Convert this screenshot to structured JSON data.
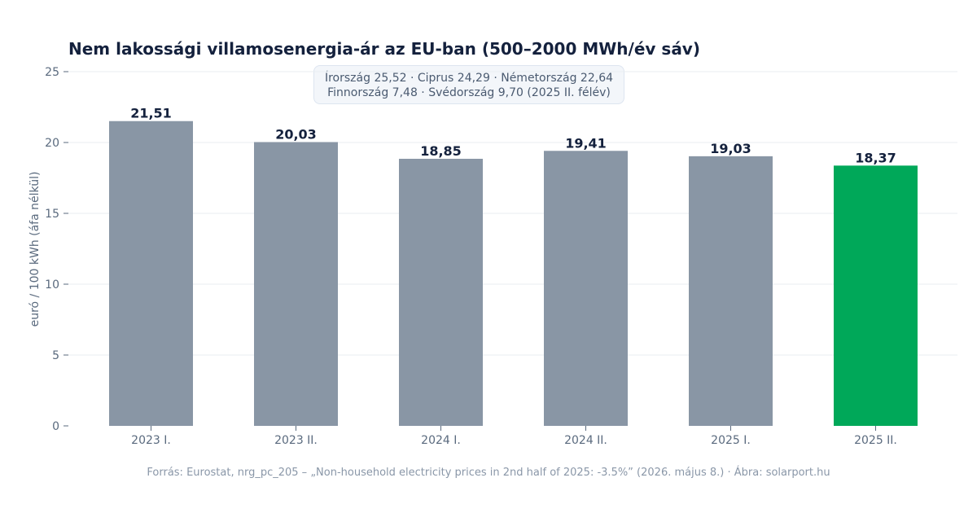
{
  "chart_data": {
    "type": "bar",
    "title": "Nem lakossági villamosenergia-ár az EU-ban (500–2000 MWh/év sáv)",
    "ylabel": "euró / 100 kWh (áfa nélkül)",
    "xlabel": "",
    "ylim": [
      0,
      25
    ],
    "yticks": [
      0,
      5,
      10,
      15,
      20,
      25
    ],
    "grid": true,
    "categories": [
      "2023 I.",
      "2023 II.",
      "2024 I.",
      "2024 II.",
      "2025 I.",
      "2025 II."
    ],
    "values": [
      21.51,
      20.03,
      18.85,
      19.41,
      19.03,
      18.37
    ],
    "value_labels": [
      "21,51",
      "20,03",
      "18,85",
      "19,41",
      "19,03",
      "18,37"
    ],
    "bar_colors": [
      "#8996a5",
      "#8996a5",
      "#8996a5",
      "#8996a5",
      "#8996a5",
      "#00a859"
    ],
    "annotation": {
      "line1": "Írország 25,52 · Ciprus 24,29 · Németország 22,64",
      "line2": "Finnország 7,48 · Svédország 9,70  (2025 II. félév)"
    }
  },
  "footer": {
    "source": "Forrás: Eurostat, nrg_pc_205 – „Non-household electricity prices in 2nd half of 2025: -3.5%” (2026. május 8.) · Ábra: solarport.hu"
  },
  "colors": {
    "default_bar": "#8996a5",
    "highlight_bar": "#00a859",
    "title": "#14213d",
    "axis_text": "#5a6a7e"
  }
}
